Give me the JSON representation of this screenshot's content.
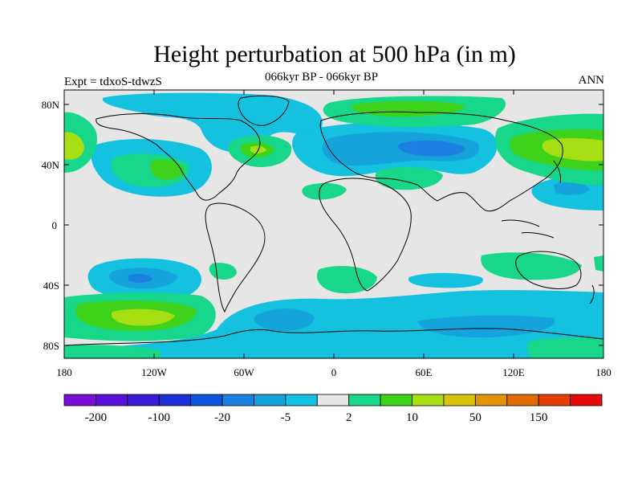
{
  "title": "Height perturbation at 500 hPa (in m)",
  "subtitle": "066kyr BP - 066kyr BP",
  "experiment_label": "Expt = tdxoS-tdwzS",
  "season_label": "ANN",
  "map": {
    "projection": "cylindrical-equidistant",
    "lon_range": [
      -180,
      180
    ],
    "lat_range": [
      -90,
      90
    ],
    "background_color": "#e6e6e6",
    "coastline_color": "#000000",
    "lat_tick_labels": [
      "80N",
      "40N",
      "0",
      "40S",
      "80S"
    ],
    "lon_tick_labels": [
      "180",
      "120W",
      "60W",
      "0",
      "60E",
      "120E",
      "180"
    ]
  },
  "colorbar": {
    "colors": [
      "#7a0ed6",
      "#5a10d8",
      "#3a1bd6",
      "#1e2ed6",
      "#0a55dc",
      "#1b80e0",
      "#15a3dc",
      "#14c1de",
      "#e6e6e6",
      "#18d68a",
      "#3fd21a",
      "#a8de14",
      "#d6c40c",
      "#e09406",
      "#e06a04",
      "#e23e06",
      "#e30a08"
    ],
    "labels": [
      "-200",
      "-100",
      "-20",
      "-5",
      "2",
      "10",
      "50",
      "150"
    ]
  },
  "fields": {
    "negative_levels": [
      "#14c1de",
      "#15a3dc",
      "#1b80e0"
    ],
    "positive_levels": [
      "#18d68a",
      "#3fd21a",
      "#a8de14"
    ]
  }
}
